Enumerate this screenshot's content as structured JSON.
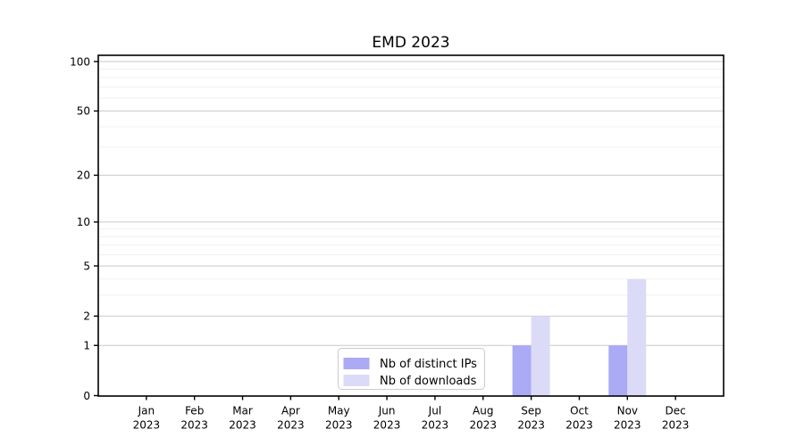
{
  "page": {
    "background": "#ffffff"
  },
  "chart_data": {
    "type": "bar",
    "title": "EMD 2023",
    "categories": [
      "Jan 2023",
      "Feb 2023",
      "Mar 2023",
      "Apr 2023",
      "May 2023",
      "Jun 2023",
      "Jul 2023",
      "Aug 2023",
      "Sep 2023",
      "Oct 2023",
      "Nov 2023",
      "Dec 2023"
    ],
    "series": [
      {
        "name": "Nb of distinct IPs",
        "color": "#aaaaf5",
        "values": [
          0,
          0,
          0,
          0,
          0,
          0,
          0,
          0,
          1,
          0,
          1,
          0
        ]
      },
      {
        "name": "Nb of downloads",
        "color": "#dbdbf8",
        "values": [
          0,
          0,
          0,
          0,
          0,
          0,
          0,
          0,
          2,
          0,
          4,
          0
        ]
      }
    ],
    "xlabel": "",
    "ylabel": "",
    "yscale": "symlog",
    "yticks": [
      "0",
      "1",
      "2",
      "5",
      "10",
      "20",
      "50",
      "100"
    ],
    "ytick_values": [
      0,
      1,
      2,
      5,
      10,
      20,
      50,
      100
    ],
    "minor_gridline_values": [
      3,
      4,
      6,
      7,
      8,
      9,
      30,
      40,
      60,
      70,
      80,
      90
    ],
    "ylim": [
      0,
      109
    ],
    "grid": true,
    "legend_position": "lower center"
  },
  "colors": {
    "axis": "#000000",
    "major_grid": "#c9c9c9",
    "minor_grid": "#f0f0f0",
    "legend_border": "#cccccc",
    "legend_bg": "#ffffff"
  }
}
